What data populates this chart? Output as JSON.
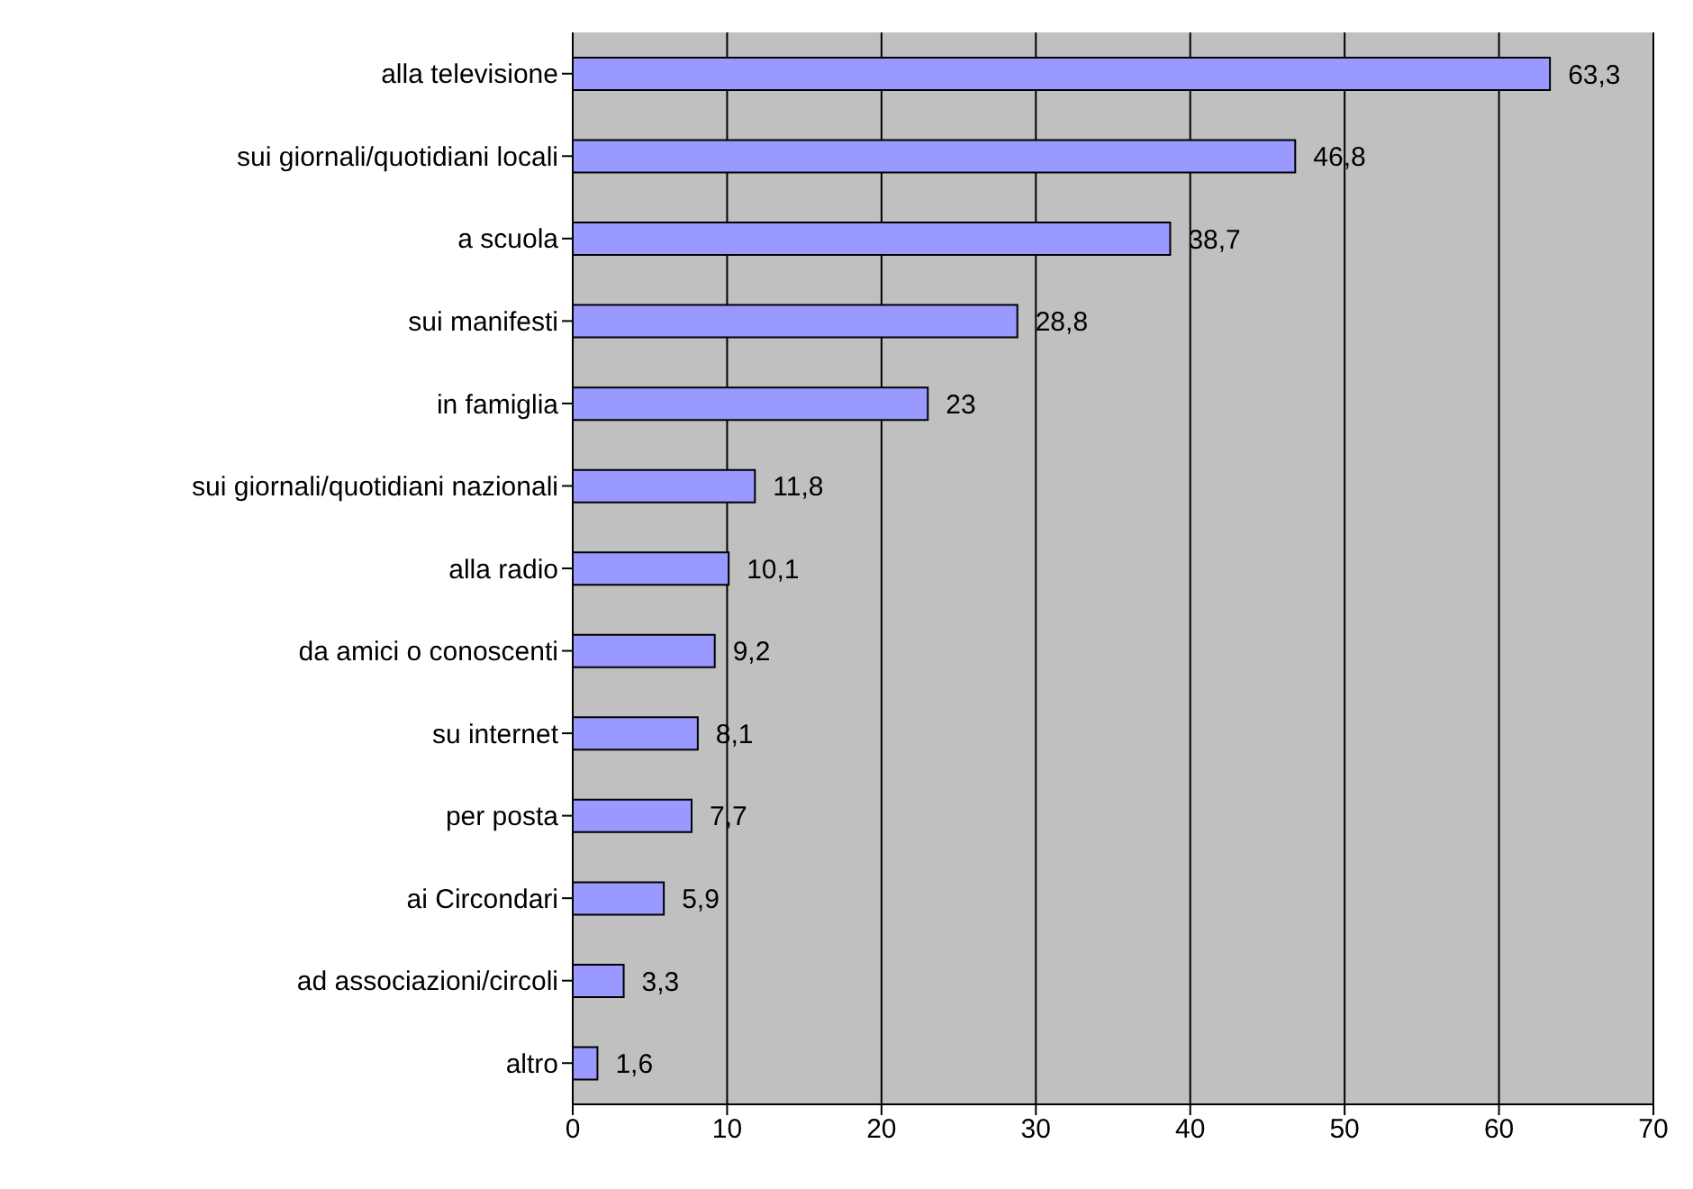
{
  "chart_data": {
    "type": "bar",
    "orientation": "horizontal",
    "categories": [
      "alla televisione",
      "sui giornali/quotidiani locali",
      "a scuola",
      "sui manifesti",
      "in famiglia",
      "sui giornali/quotidiani nazionali",
      "alla radio",
      "da amici o conoscenti",
      "su internet",
      "per posta",
      "ai Circondari",
      "ad associazioni/circoli",
      "altro"
    ],
    "values": [
      63.3,
      46.8,
      38.7,
      28.8,
      23,
      11.8,
      10.1,
      9.2,
      8.1,
      7.7,
      5.9,
      3.3,
      1.6
    ],
    "value_labels": [
      "63,3",
      "46,8",
      "38,7",
      "28,8",
      "23",
      "11,8",
      "10,1",
      "9,2",
      "8,1",
      "7,7",
      "5,9",
      "3,3",
      "1,6"
    ],
    "color": "#9999ff",
    "xlim": [
      0,
      70
    ],
    "xticks": [
      0,
      10,
      20,
      30,
      40,
      50,
      60,
      70
    ],
    "grid": "x"
  }
}
